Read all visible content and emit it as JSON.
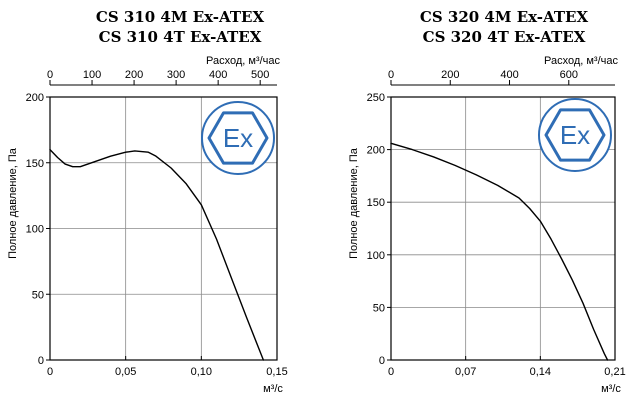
{
  "chart_data": [
    {
      "type": "line",
      "title": [
        "CS 310 4M Ex-ATEX",
        "CS 310 4T Ex-ATEX"
      ],
      "xlabel": "м³/с",
      "x2label": "Расход, м³/час",
      "ylabel": "Полное давление, Па",
      "xlim": [
        0,
        0.15
      ],
      "x2lim": [
        0,
        540
      ],
      "ylim": [
        0,
        200
      ],
      "xticks": [
        "0",
        "0,05",
        "0,10",
        "0,15"
      ],
      "xtick_values": [
        0,
        0.05,
        0.1,
        0.15
      ],
      "x2ticks": [
        "0",
        "100",
        "200",
        "300",
        "400",
        "500"
      ],
      "x2tick_values": [
        0,
        100,
        200,
        300,
        400,
        500
      ],
      "yticks": [
        "0",
        "50",
        "100",
        "150",
        "200"
      ],
      "ytick_values": [
        0,
        50,
        100,
        150,
        200
      ],
      "grid": true,
      "badge": "Ex",
      "series": [
        {
          "values": [
            [
              0,
              160
            ],
            [
              0.005,
              154
            ],
            [
              0.01,
              149
            ],
            [
              0.015,
              147
            ],
            [
              0.02,
              147
            ],
            [
              0.03,
              151
            ],
            [
              0.04,
              155
            ],
            [
              0.05,
              158
            ],
            [
              0.056,
              159
            ],
            [
              0.065,
              158
            ],
            [
              0.07,
              155
            ],
            [
              0.08,
              146
            ],
            [
              0.09,
              134
            ],
            [
              0.1,
              118
            ],
            [
              0.11,
              92
            ],
            [
              0.12,
              62
            ],
            [
              0.13,
              32
            ],
            [
              0.141,
              0
            ]
          ]
        }
      ]
    },
    {
      "type": "line",
      "title": [
        "CS 320 4M Ex-ATEX",
        "CS 320 4T Ex-ATEX"
      ],
      "xlabel": "м³/с",
      "x2label": "Расход, м³/час",
      "ylabel": "Полное давление, Па",
      "xlim": [
        0,
        0.21
      ],
      "x2lim": [
        0,
        756
      ],
      "ylim": [
        0,
        250
      ],
      "xticks": [
        "0",
        "0,07",
        "0,14",
        "0,21"
      ],
      "xtick_values": [
        0,
        0.07,
        0.14,
        0.21
      ],
      "x2ticks": [
        "0",
        "200",
        "400",
        "600"
      ],
      "x2tick_values": [
        0,
        200,
        400,
        600
      ],
      "yticks": [
        "0",
        "50",
        "100",
        "150",
        "200",
        "250"
      ],
      "ytick_values": [
        0,
        50,
        100,
        150,
        200,
        250
      ],
      "grid": true,
      "badge": "Ex",
      "series": [
        {
          "values": [
            [
              0,
              206
            ],
            [
              0.02,
              200
            ],
            [
              0.04,
              193
            ],
            [
              0.06,
              185
            ],
            [
              0.08,
              176
            ],
            [
              0.1,
              166
            ],
            [
              0.12,
              154
            ],
            [
              0.13,
              144
            ],
            [
              0.14,
              132
            ],
            [
              0.15,
              115
            ],
            [
              0.16,
              96
            ],
            [
              0.17,
              76
            ],
            [
              0.18,
              54
            ],
            [
              0.19,
              29
            ],
            [
              0.2,
              6
            ],
            [
              0.203,
              0
            ]
          ]
        }
      ]
    }
  ]
}
